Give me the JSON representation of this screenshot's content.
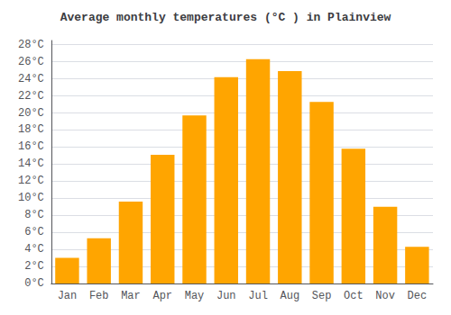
{
  "chart_data": {
    "type": "bar",
    "title": "Average monthly temperatures (°C ) in Plainview",
    "categories": [
      "Jan",
      "Feb",
      "Mar",
      "Apr",
      "May",
      "Jun",
      "Jul",
      "Aug",
      "Sep",
      "Oct",
      "Nov",
      "Dec"
    ],
    "values": [
      3.0,
      5.3,
      9.6,
      15.1,
      19.7,
      24.2,
      26.3,
      24.9,
      21.3,
      15.8,
      9.0,
      4.3
    ],
    "color": "#FFA500",
    "ylim": [
      0,
      28.5
    ],
    "yticks": [
      {
        "value": 0,
        "label": "0°C"
      },
      {
        "value": 2,
        "label": "2°C"
      },
      {
        "value": 4,
        "label": "4°C"
      },
      {
        "value": 6,
        "label": "6°C"
      },
      {
        "value": 8,
        "label": "8°C"
      },
      {
        "value": 10,
        "label": "10°C"
      },
      {
        "value": 12,
        "label": "12°C"
      },
      {
        "value": 14,
        "label": "14°C"
      },
      {
        "value": 16,
        "label": "16°C"
      },
      {
        "value": 18,
        "label": "18°C"
      },
      {
        "value": 20,
        "label": "20°C"
      },
      {
        "value": 22,
        "label": "22°C"
      },
      {
        "value": 24,
        "label": "24°C"
      },
      {
        "value": 26,
        "label": "26°C"
      },
      {
        "value": 28,
        "label": "28°C"
      }
    ],
    "grid": true
  }
}
